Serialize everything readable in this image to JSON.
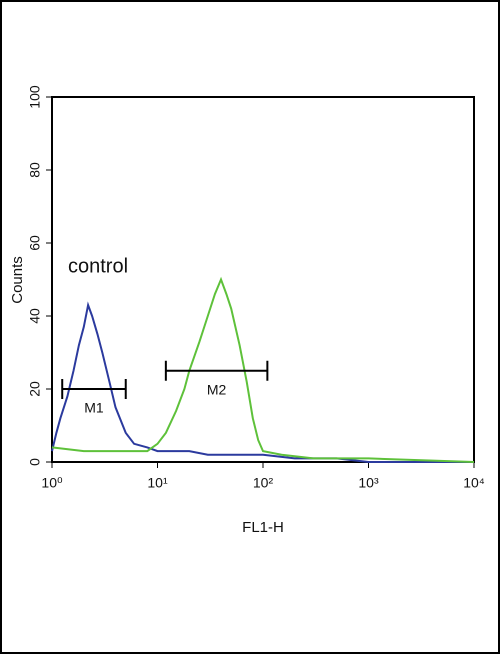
{
  "chart_data": {
    "type": "line",
    "log_x": true,
    "xlabel": "FL1-H",
    "ylabel": "Counts",
    "xlim": [
      1,
      10000
    ],
    "xticks": [
      {
        "value": 1,
        "label": "10⁰"
      },
      {
        "value": 10,
        "label": "10¹"
      },
      {
        "value": 100,
        "label": "10²"
      },
      {
        "value": 1000,
        "label": "10³"
      },
      {
        "value": 10000,
        "label": "10⁴"
      }
    ],
    "ylim": [
      0,
      100
    ],
    "yticks": [
      0,
      20,
      40,
      60,
      80,
      100
    ],
    "series": [
      {
        "name": "control",
        "color": "#2b3a9e",
        "x": [
          1,
          1.1,
          1.2,
          1.4,
          1.6,
          1.8,
          2,
          2.2,
          2.4,
          2.7,
          3,
          3.5,
          4,
          5,
          6,
          8,
          10,
          15,
          20,
          30,
          50,
          80,
          100,
          200,
          500,
          1000,
          10000
        ],
        "values": [
          3,
          8,
          12,
          18,
          25,
          32,
          37,
          43,
          40,
          35,
          30,
          22,
          15,
          8,
          5,
          4,
          3,
          3,
          3,
          2,
          2,
          2,
          2,
          1,
          1,
          0,
          0
        ]
      },
      {
        "color": "#5ec13a",
        "x": [
          1,
          2,
          5,
          8,
          10,
          12,
          15,
          18,
          20,
          25,
          30,
          35,
          40,
          45,
          50,
          60,
          70,
          80,
          90,
          100,
          150,
          300,
          1000,
          10000
        ],
        "values": [
          4,
          3,
          3,
          3,
          5,
          8,
          14,
          20,
          25,
          33,
          40,
          46,
          50,
          46,
          42,
          32,
          22,
          12,
          6,
          3,
          2,
          1,
          1,
          0
        ]
      }
    ],
    "markers": [
      {
        "label": "M1",
        "x": [
          1.25,
          5
        ],
        "y": 20
      },
      {
        "label": "M2",
        "x": [
          12,
          110
        ],
        "y": 25
      }
    ]
  }
}
